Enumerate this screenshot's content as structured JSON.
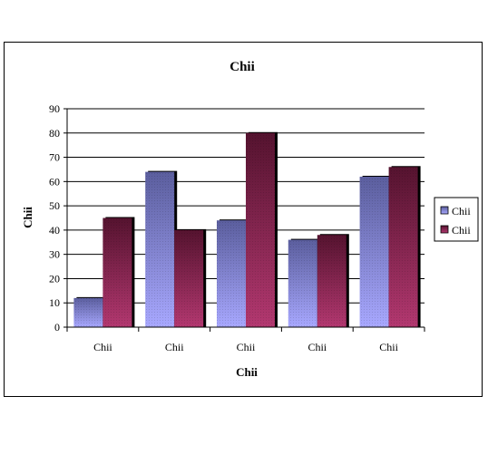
{
  "chart_data": {
    "type": "bar",
    "title": "Chii",
    "xlabel": "Chii",
    "ylabel": "Chii",
    "categories": [
      "Chii",
      "Chii",
      "Chii",
      "Chii",
      "Chii"
    ],
    "series": [
      {
        "name": "Chii",
        "values": [
          12,
          64,
          44,
          36,
          62
        ]
      },
      {
        "name": "Chii",
        "values": [
          45,
          40,
          80,
          38,
          66
        ]
      }
    ],
    "ylim": [
      0,
      90
    ],
    "yticks": [
      0,
      10,
      20,
      30,
      40,
      50,
      60,
      70,
      80,
      90
    ],
    "grid": true,
    "legend": "right",
    "colors": {
      "series1_top": "#5b5e9e",
      "series1_bottom": "#a8a8ff",
      "series2_top": "#55132f",
      "series2_bottom": "#b33870"
    }
  }
}
